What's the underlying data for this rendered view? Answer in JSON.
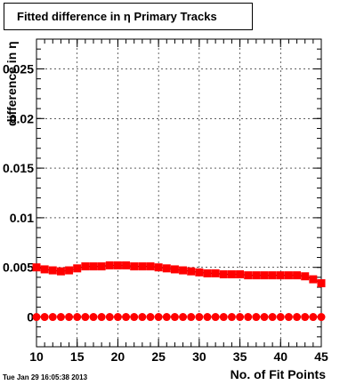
{
  "chart_data": {
    "type": "scatter",
    "title": "Fitted difference in  η Primary Tracks",
    "xlabel": "No. of Fit Points",
    "ylabel": "difference in η",
    "xlim": [
      10,
      45
    ],
    "ylim": [
      -0.003,
      0.028
    ],
    "x_ticks": [
      "10",
      "15",
      "20",
      "25",
      "30",
      "35",
      "40",
      "45"
    ],
    "y_ticks": [
      "0",
      "0.005",
      "0.01",
      "0.015",
      "0.02",
      "0.025"
    ],
    "grid": true,
    "series": [
      {
        "color": "#ff0000",
        "marker": "square",
        "x": [
          10,
          11,
          12,
          13,
          14,
          15,
          16,
          17,
          18,
          19,
          20,
          21,
          22,
          23,
          24,
          25,
          26,
          27,
          28,
          29,
          30,
          31,
          32,
          33,
          34,
          35,
          36,
          37,
          38,
          39,
          40,
          41,
          42,
          43,
          44,
          45
        ],
        "y": [
          0.005,
          0.0048,
          0.0047,
          0.0046,
          0.0047,
          0.0049,
          0.0051,
          0.0051,
          0.0051,
          0.0052,
          0.0052,
          0.0052,
          0.0051,
          0.0051,
          0.0051,
          0.005,
          0.0049,
          0.0048,
          0.0047,
          0.0046,
          0.0045,
          0.0044,
          0.0044,
          0.0043,
          0.0043,
          0.0043,
          0.0042,
          0.0042,
          0.0042,
          0.0042,
          0.0042,
          0.0042,
          0.0042,
          0.0041,
          0.0038,
          0.0034
        ],
        "yerr": [
          0.0003,
          0.0002,
          0.0002,
          0.0002,
          0.0002,
          0.0002,
          0.0002,
          0.0002,
          0.0002,
          0.0002,
          0.0002,
          0.0002,
          0.0002,
          0.0002,
          0.0002,
          0.0002,
          0.0002,
          0.0002,
          0.0002,
          0.0002,
          0.0002,
          0.0002,
          0.0002,
          0.0002,
          0.0002,
          0.0002,
          0.0002,
          0.0002,
          0.0002,
          0.0002,
          0.0002,
          0.0002,
          0.0002,
          0.0002,
          0.0003,
          0.0003
        ]
      },
      {
        "color": "#ff0000",
        "marker": "circle",
        "x": [
          10,
          11,
          12,
          13,
          14,
          15,
          16,
          17,
          18,
          19,
          20,
          21,
          22,
          23,
          24,
          25,
          26,
          27,
          28,
          29,
          30,
          31,
          32,
          33,
          34,
          35,
          36,
          37,
          38,
          39,
          40,
          41,
          42,
          43,
          44,
          45
        ],
        "y": [
          0,
          0,
          0,
          0,
          0,
          0,
          0,
          0,
          0,
          0,
          0,
          0,
          0,
          0,
          0,
          0,
          0,
          0,
          0,
          0,
          0,
          0,
          0,
          0,
          0,
          0,
          0,
          0,
          0,
          0,
          0,
          0,
          0,
          0,
          0,
          0
        ]
      }
    ]
  },
  "footer": {
    "timestamp": "Tue Jan 29 16:05:38 2013"
  }
}
